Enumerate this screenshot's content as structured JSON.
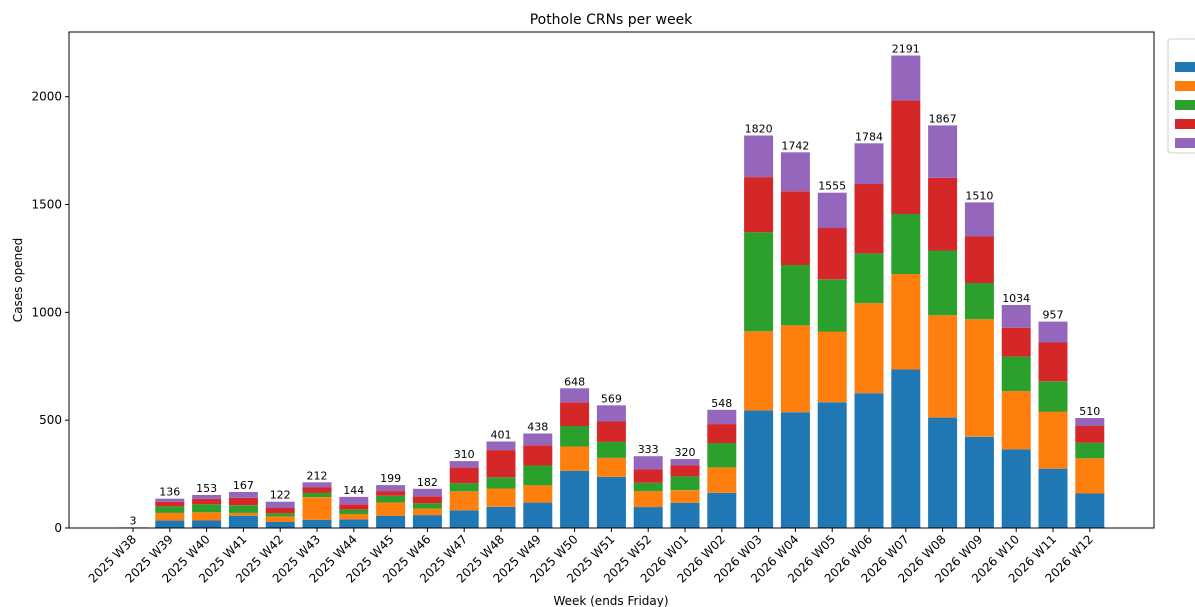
{
  "chart_data": {
    "type": "bar",
    "stacked": true,
    "title": "Pothole CRNs per week",
    "xlabel": "Week (ends Friday)",
    "ylabel": "Cases opened",
    "ylim": [
      0,
      2300
    ],
    "yticks": [
      0,
      500,
      1000,
      1500,
      2000
    ],
    "grid": false,
    "legend_position": "upper-right",
    "categories": [
      "2025 W38",
      "2025 W39",
      "2025 W40",
      "2025 W41",
      "2025 W42",
      "2025 W43",
      "2025 W44",
      "2025 W45",
      "2025 W46",
      "2025 W47",
      "2025 W48",
      "2025 W49",
      "2025 W50",
      "2025 W51",
      "2025 W52",
      "2026 W01",
      "2026 W02",
      "2026 W03",
      "2026 W04",
      "2026 W05",
      "2026 W06",
      "2026 W07",
      "2026 W08",
      "2026 W09",
      "2026 W10",
      "2026 W11",
      "2026 W12"
    ],
    "series": [
      {
        "color": "#1f77b4",
        "values": [
          0,
          35,
          35,
          57,
          28,
          38,
          40,
          57,
          60,
          82,
          98,
          118,
          265,
          237,
          97,
          117,
          163,
          545,
          537,
          583,
          625,
          735,
          512,
          423,
          365,
          275,
          160
        ]
      },
      {
        "color": "#ff7f0e",
        "values": [
          0,
          35,
          38,
          13,
          25,
          105,
          25,
          62,
          30,
          88,
          85,
          80,
          113,
          88,
          73,
          58,
          118,
          367,
          403,
          328,
          418,
          443,
          475,
          545,
          270,
          265,
          163
        ]
      },
      {
        "color": "#2ca02c",
        "values": [
          0,
          30,
          37,
          35,
          15,
          20,
          20,
          30,
          25,
          38,
          52,
          92,
          95,
          75,
          40,
          65,
          113,
          460,
          280,
          242,
          230,
          278,
          300,
          168,
          160,
          140,
          72
        ]
      },
      {
        "color": "#d62728",
        "values": [
          3,
          21,
          25,
          35,
          25,
          25,
          24,
          22,
          32,
          72,
          126,
          93,
          110,
          94,
          62,
          50,
          88,
          255,
          342,
          238,
          322,
          527,
          337,
          216,
          134,
          180,
          78
        ]
      },
      {
        "color": "#9467bd",
        "values": [
          0,
          15,
          18,
          27,
          29,
          24,
          35,
          28,
          35,
          30,
          40,
          55,
          65,
          75,
          61,
          30,
          66,
          193,
          180,
          164,
          189,
          208,
          243,
          158,
          105,
          97,
          37
        ]
      }
    ],
    "totals": [
      3,
      136,
      153,
      167,
      122,
      212,
      144,
      199,
      182,
      310,
      401,
      438,
      648,
      569,
      333,
      320,
      548,
      1820,
      1742,
      1555,
      1784,
      2191,
      1867,
      1510,
      1034,
      957,
      510
    ]
  }
}
